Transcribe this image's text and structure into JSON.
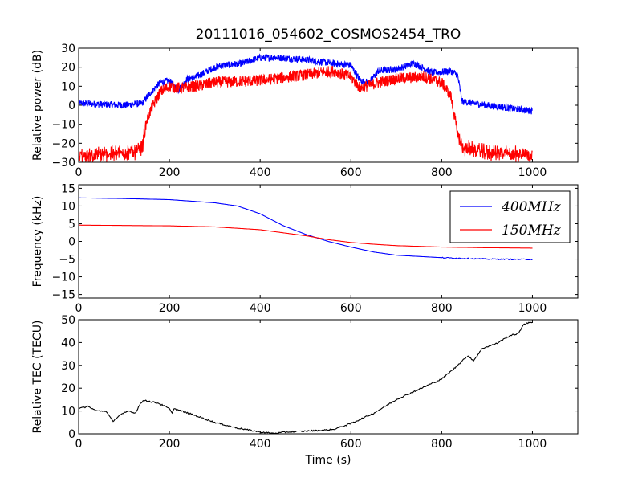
{
  "title": "20111016_054602_COSMOS2454_TRO",
  "colors": {
    "blue": "#0000ff",
    "red": "#ff0000",
    "black": "#000000"
  },
  "chart_data": [
    {
      "type": "line",
      "ylabel": "Relative power (dB)",
      "xlim": [
        0,
        1100
      ],
      "ylim": [
        -30,
        30
      ],
      "x_ticks": [
        "0",
        "200",
        "400",
        "600",
        "800",
        "1000"
      ],
      "y_ticks": [
        "30",
        "20",
        "10",
        "0",
        "−10",
        "−20",
        "−30"
      ],
      "series": [
        {
          "color": "#0000ff",
          "noise": 1.8,
          "points": [
            [
              0,
              1
            ],
            [
              100,
              0
            ],
            [
              140,
              1
            ],
            [
              160,
              7
            ],
            [
              180,
              12
            ],
            [
              200,
              13
            ],
            [
              210,
              10
            ],
            [
              220,
              8
            ],
            [
              240,
              14
            ],
            [
              260,
              15
            ],
            [
              300,
              20
            ],
            [
              320,
              21
            ],
            [
              360,
              22
            ],
            [
              400,
              25
            ],
            [
              440,
              25
            ],
            [
              500,
              24
            ],
            [
              560,
              22
            ],
            [
              600,
              21
            ],
            [
              620,
              13
            ],
            [
              640,
              12
            ],
            [
              660,
              18
            ],
            [
              700,
              19
            ],
            [
              740,
              22
            ],
            [
              780,
              17
            ],
            [
              820,
              18
            ],
            [
              835,
              16
            ],
            [
              845,
              2
            ],
            [
              900,
              0
            ],
            [
              1000,
              -3
            ]
          ]
        },
        {
          "color": "#ff0000",
          "noise": 3.0,
          "points": [
            [
              0,
              -27
            ],
            [
              100,
              -25
            ],
            [
              130,
              -24
            ],
            [
              140,
              -22
            ],
            [
              150,
              -8
            ],
            [
              160,
              -2
            ],
            [
              180,
              7
            ],
            [
              200,
              10
            ],
            [
              220,
              9
            ],
            [
              260,
              10
            ],
            [
              300,
              12
            ],
            [
              400,
              13
            ],
            [
              500,
              16
            ],
            [
              560,
              18
            ],
            [
              600,
              15
            ],
            [
              620,
              9
            ],
            [
              660,
              12
            ],
            [
              700,
              14
            ],
            [
              760,
              15
            ],
            [
              800,
              12
            ],
            [
              820,
              5
            ],
            [
              835,
              -15
            ],
            [
              845,
              -22
            ],
            [
              900,
              -25
            ],
            [
              1000,
              -26
            ]
          ]
        }
      ]
    },
    {
      "type": "line",
      "ylabel": "Frequency (kHz)",
      "xlim": [
        0,
        1100
      ],
      "ylim": [
        -16,
        16
      ],
      "x_ticks": [
        "0",
        "200",
        "400",
        "600",
        "800",
        "1000"
      ],
      "y_ticks": [
        "15",
        "10",
        "5",
        "0",
        "−5",
        "−10",
        "−15"
      ],
      "series": [
        {
          "name": "400MHz",
          "color": "#0000ff",
          "points": [
            [
              0,
              12.3
            ],
            [
              100,
              12.1
            ],
            [
              200,
              11.8
            ],
            [
              300,
              10.9
            ],
            [
              350,
              10
            ],
            [
              400,
              7.8
            ],
            [
              450,
              4.5
            ],
            [
              500,
              2
            ],
            [
              550,
              0
            ],
            [
              600,
              -1.6
            ],
            [
              650,
              -3
            ],
            [
              700,
              -3.9
            ],
            [
              800,
              -4.6
            ],
            [
              900,
              -5
            ],
            [
              1000,
              -5.1
            ]
          ]
        },
        {
          "name": "150MHz",
          "color": "#ff0000",
          "points": [
            [
              0,
              4.6
            ],
            [
              100,
              4.5
            ],
            [
              200,
              4.4
            ],
            [
              300,
              4.1
            ],
            [
              400,
              3.3
            ],
            [
              500,
              1.6
            ],
            [
              550,
              0.5
            ],
            [
              600,
              -0.3
            ],
            [
              650,
              -0.8
            ],
            [
              700,
              -1.2
            ],
            [
              800,
              -1.6
            ],
            [
              900,
              -1.8
            ],
            [
              1000,
              -1.9
            ]
          ]
        }
      ],
      "legend": {
        "position": "upper right",
        "entries": [
          "400MHz",
          "150MHz"
        ]
      }
    },
    {
      "type": "line",
      "ylabel": "Relative TEC (TECU)",
      "xlabel": "Time (s)",
      "xlim": [
        0,
        1100
      ],
      "ylim": [
        0,
        50
      ],
      "x_ticks": [
        "0",
        "200",
        "400",
        "600",
        "800",
        "1000"
      ],
      "y_ticks": [
        "50",
        "40",
        "30",
        "20",
        "10",
        "0"
      ],
      "series": [
        {
          "color": "#000000",
          "points": [
            [
              0,
              11
            ],
            [
              20,
              12
            ],
            [
              40,
              10
            ],
            [
              60,
              10
            ],
            [
              75,
              5.5
            ],
            [
              90,
              8
            ],
            [
              110,
              10
            ],
            [
              125,
              9
            ],
            [
              135,
              13
            ],
            [
              145,
              14.8
            ],
            [
              160,
              14
            ],
            [
              175,
              13.5
            ],
            [
              200,
              11
            ],
            [
              205,
              9
            ],
            [
              210,
              11
            ],
            [
              250,
              8.5
            ],
            [
              300,
              5
            ],
            [
              350,
              2.5
            ],
            [
              400,
              0.8
            ],
            [
              430,
              0.2
            ],
            [
              460,
              0.8
            ],
            [
              500,
              1.2
            ],
            [
              560,
              1.8
            ],
            [
              600,
              4.5
            ],
            [
              650,
              9
            ],
            [
              700,
              15
            ],
            [
              750,
              19.5
            ],
            [
              800,
              24
            ],
            [
              830,
              29
            ],
            [
              850,
              33
            ],
            [
              860,
              34
            ],
            [
              870,
              32
            ],
            [
              890,
              37.5
            ],
            [
              920,
              39.5
            ],
            [
              950,
              43
            ],
            [
              970,
              44
            ],
            [
              980,
              48
            ],
            [
              1000,
              49
            ]
          ]
        }
      ]
    }
  ]
}
